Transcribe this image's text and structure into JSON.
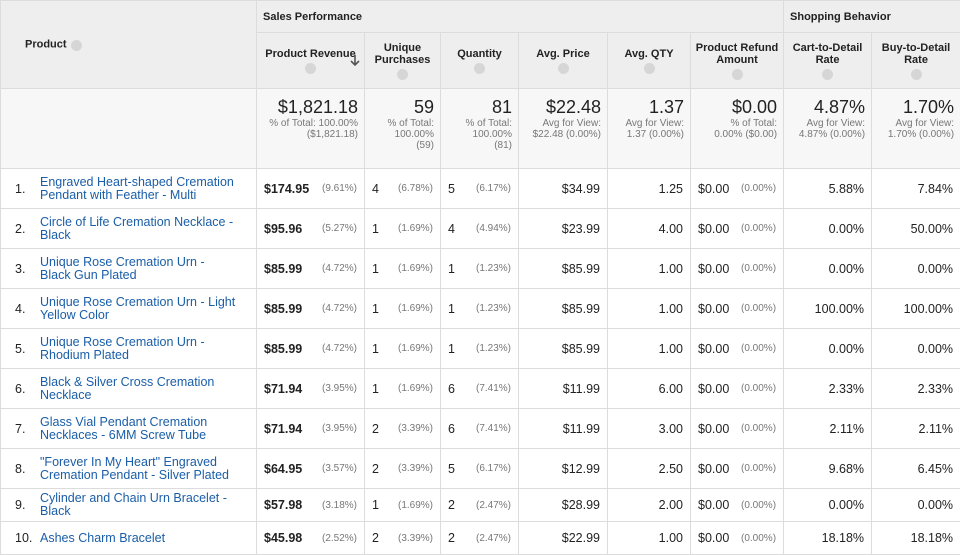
{
  "header": {
    "product": "Product",
    "groups": [
      "Sales Performance",
      "Shopping Behavior"
    ],
    "columns": [
      "Product Revenue",
      "Unique Purchases",
      "Quantity",
      "Avg. Price",
      "Avg. QTY",
      "Product Refund Amount",
      "Cart-to-Detail Rate",
      "Buy-to-Detail Rate"
    ]
  },
  "totals": [
    {
      "main": "$1,821.18",
      "sub": "% of Total: 100.00% ($1,821.18)"
    },
    {
      "main": "59",
      "sub": "% of Total: 100.00% (59)"
    },
    {
      "main": "81",
      "sub": "% of Total: 100.00% (81)"
    },
    {
      "main": "$22.48",
      "sub": "Avg for View: $22.48 (0.00%)"
    },
    {
      "main": "1.37",
      "sub": "Avg for View: 1.37 (0.00%)"
    },
    {
      "main": "$0.00",
      "sub": "% of Total: 0.00% ($0.00)"
    },
    {
      "main": "4.87%",
      "sub": "Avg for View: 4.87% (0.00%)"
    },
    {
      "main": "1.70%",
      "sub": "Avg for View: 1.70% (0.00%)"
    }
  ],
  "rows": [
    {
      "index": "1.",
      "product": "Engraved Heart-shaped Cremation Pendant with Feather - Multi",
      "cells": [
        [
          "$174.95",
          "(9.61%)"
        ],
        [
          "4",
          "(6.78%)"
        ],
        [
          "5",
          "(6.17%)"
        ],
        [
          "$34.99"
        ],
        [
          "1.25"
        ],
        [
          "$0.00",
          "(0.00%)"
        ],
        [
          "5.88%"
        ],
        [
          "7.84%"
        ]
      ]
    },
    {
      "index": "2.",
      "product": "Circle of Life Cremation Necklace - Black",
      "cells": [
        [
          "$95.96",
          "(5.27%)"
        ],
        [
          "1",
          "(1.69%)"
        ],
        [
          "4",
          "(4.94%)"
        ],
        [
          "$23.99"
        ],
        [
          "4.00"
        ],
        [
          "$0.00",
          "(0.00%)"
        ],
        [
          "0.00%"
        ],
        [
          "50.00%"
        ]
      ]
    },
    {
      "index": "3.",
      "product": "Unique Rose Cremation Urn - Black Gun Plated",
      "cells": [
        [
          "$85.99",
          "(4.72%)"
        ],
        [
          "1",
          "(1.69%)"
        ],
        [
          "1",
          "(1.23%)"
        ],
        [
          "$85.99"
        ],
        [
          "1.00"
        ],
        [
          "$0.00",
          "(0.00%)"
        ],
        [
          "0.00%"
        ],
        [
          "0.00%"
        ]
      ]
    },
    {
      "index": "4.",
      "product": "Unique Rose Cremation Urn - Light Yellow Color",
      "cells": [
        [
          "$85.99",
          "(4.72%)"
        ],
        [
          "1",
          "(1.69%)"
        ],
        [
          "1",
          "(1.23%)"
        ],
        [
          "$85.99"
        ],
        [
          "1.00"
        ],
        [
          "$0.00",
          "(0.00%)"
        ],
        [
          "100.00%"
        ],
        [
          "100.00%"
        ]
      ]
    },
    {
      "index": "5.",
      "product": "Unique Rose Cremation Urn - Rhodium Plated",
      "cells": [
        [
          "$85.99",
          "(4.72%)"
        ],
        [
          "1",
          "(1.69%)"
        ],
        [
          "1",
          "(1.23%)"
        ],
        [
          "$85.99"
        ],
        [
          "1.00"
        ],
        [
          "$0.00",
          "(0.00%)"
        ],
        [
          "0.00%"
        ],
        [
          "0.00%"
        ]
      ]
    },
    {
      "index": "6.",
      "product": "Black & Silver Cross Cremation Necklace",
      "cells": [
        [
          "$71.94",
          "(3.95%)"
        ],
        [
          "1",
          "(1.69%)"
        ],
        [
          "6",
          "(7.41%)"
        ],
        [
          "$11.99"
        ],
        [
          "6.00"
        ],
        [
          "$0.00",
          "(0.00%)"
        ],
        [
          "2.33%"
        ],
        [
          "2.33%"
        ]
      ]
    },
    {
      "index": "7.",
      "product": "Glass Vial Pendant Cremation Necklaces - 6MM Screw Tube",
      "cells": [
        [
          "$71.94",
          "(3.95%)"
        ],
        [
          "2",
          "(3.39%)"
        ],
        [
          "6",
          "(7.41%)"
        ],
        [
          "$11.99"
        ],
        [
          "3.00"
        ],
        [
          "$0.00",
          "(0.00%)"
        ],
        [
          "2.11%"
        ],
        [
          "2.11%"
        ]
      ]
    },
    {
      "index": "8.",
      "product": "\"Forever In My Heart\" Engraved Cremation Pendant - Silver Plated",
      "cells": [
        [
          "$64.95",
          "(3.57%)"
        ],
        [
          "2",
          "(3.39%)"
        ],
        [
          "5",
          "(6.17%)"
        ],
        [
          "$12.99"
        ],
        [
          "2.50"
        ],
        [
          "$0.00",
          "(0.00%)"
        ],
        [
          "9.68%"
        ],
        [
          "6.45%"
        ]
      ]
    },
    {
      "index": "9.",
      "product": "Cylinder and Chain Urn Bracelet - Black",
      "cells": [
        [
          "$57.98",
          "(3.18%)"
        ],
        [
          "1",
          "(1.69%)"
        ],
        [
          "2",
          "(2.47%)"
        ],
        [
          "$28.99"
        ],
        [
          "2.00"
        ],
        [
          "$0.00",
          "(0.00%)"
        ],
        [
          "0.00%"
        ],
        [
          "0.00%"
        ]
      ]
    },
    {
      "index": "10.",
      "product": "Ashes Charm Bracelet",
      "cells": [
        [
          "$45.98",
          "(2.52%)"
        ],
        [
          "2",
          "(3.39%)"
        ],
        [
          "2",
          "(2.47%)"
        ],
        [
          "$22.99"
        ],
        [
          "1.00"
        ],
        [
          "$0.00",
          "(0.00%)"
        ],
        [
          "18.18%"
        ],
        [
          "18.18%"
        ]
      ]
    }
  ]
}
